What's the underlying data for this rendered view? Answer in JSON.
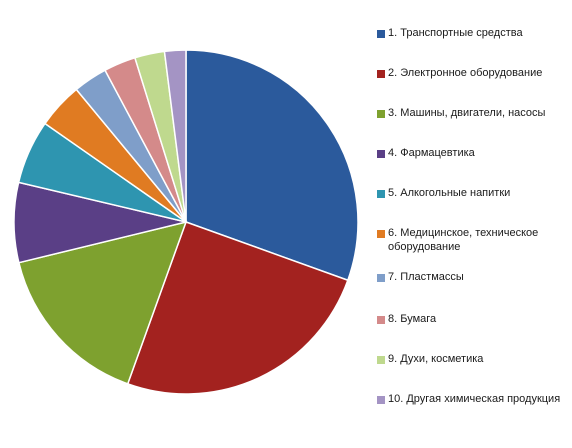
{
  "chart_data": {
    "type": "pie",
    "title": "",
    "legend_position": "right",
    "start_angle_deg": 0,
    "direction": "clockwise",
    "slices": [
      {
        "label": "1. Транспортные средства",
        "value": 30.5,
        "color": "#2b5a9c"
      },
      {
        "label": "2. Электронное оборудование",
        "value": 25.0,
        "color": "#a3221f"
      },
      {
        "label": "3. Машины, двигатели, насосы",
        "value": 15.7,
        "color": "#7ea12f"
      },
      {
        "label": "4. Фармацевтика",
        "value": 7.5,
        "color": "#5a3f86"
      },
      {
        "label": "5. Алкогольные напитки",
        "value": 6.0,
        "color": "#2e95b0"
      },
      {
        "label": "6. Медицинское, техническое оборудование",
        "value": 4.3,
        "color": "#e07b22"
      },
      {
        "label": "7. Пластмассы",
        "value": 3.2,
        "color": "#7f9ec9"
      },
      {
        "label": "8. Бумага",
        "value": 3.0,
        "color": "#d48a8a"
      },
      {
        "label": "9. Духи, косметика",
        "value": 2.8,
        "color": "#bfd98e"
      },
      {
        "label": "10. Другая химическая продукция",
        "value": 2.0,
        "color": "#a494c4"
      }
    ]
  }
}
